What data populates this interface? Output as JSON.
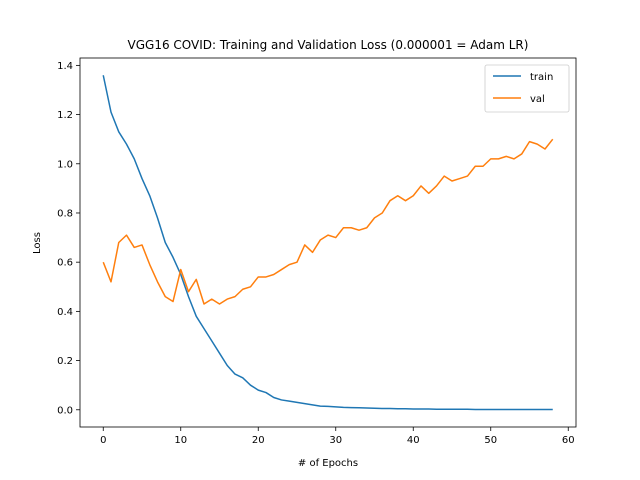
{
  "chart_data": {
    "type": "line",
    "title": "VGG16 COVID: Training and Validation Loss (0.000001 = Adam LR)",
    "xlabel": "# of Epochs",
    "ylabel": "Loss",
    "xlim": [
      -3,
      61
    ],
    "ylim": [
      -0.07,
      1.43
    ],
    "xticks": [
      0,
      10,
      20,
      30,
      40,
      50,
      60
    ],
    "yticks": [
      0.0,
      0.2,
      0.4,
      0.6,
      0.8,
      1.0,
      1.2,
      1.4
    ],
    "legend_position": "top-right",
    "x": [
      0,
      1,
      2,
      3,
      4,
      5,
      6,
      7,
      8,
      9,
      10,
      11,
      12,
      13,
      14,
      15,
      16,
      17,
      18,
      19,
      20,
      21,
      22,
      23,
      24,
      25,
      26,
      27,
      28,
      29,
      30,
      31,
      32,
      33,
      34,
      35,
      36,
      37,
      38,
      39,
      40,
      41,
      42,
      43,
      44,
      45,
      46,
      47,
      48,
      49,
      50,
      51,
      52,
      53,
      54,
      55,
      56,
      57,
      58
    ],
    "series": [
      {
        "name": "train",
        "color": "#1f77b4",
        "values": [
          1.36,
          1.21,
          1.13,
          1.08,
          1.02,
          0.94,
          0.87,
          0.78,
          0.68,
          0.62,
          0.55,
          0.46,
          0.38,
          0.33,
          0.28,
          0.23,
          0.18,
          0.145,
          0.13,
          0.1,
          0.08,
          0.07,
          0.05,
          0.04,
          0.035,
          0.03,
          0.025,
          0.02,
          0.015,
          0.014,
          0.012,
          0.01,
          0.009,
          0.008,
          0.007,
          0.006,
          0.005,
          0.005,
          0.004,
          0.004,
          0.003,
          0.003,
          0.003,
          0.002,
          0.002,
          0.002,
          0.002,
          0.002,
          0.001,
          0.001,
          0.001,
          0.001,
          0.001,
          0.001,
          0.001,
          0.001,
          0.001,
          0.001,
          0.001
        ]
      },
      {
        "name": "val",
        "color": "#ff7f0e",
        "values": [
          0.6,
          0.52,
          0.68,
          0.71,
          0.66,
          0.67,
          0.59,
          0.52,
          0.46,
          0.44,
          0.57,
          0.48,
          0.53,
          0.43,
          0.45,
          0.43,
          0.45,
          0.46,
          0.49,
          0.5,
          0.54,
          0.54,
          0.55,
          0.57,
          0.59,
          0.6,
          0.67,
          0.64,
          0.69,
          0.71,
          0.7,
          0.74,
          0.74,
          0.73,
          0.74,
          0.78,
          0.8,
          0.85,
          0.87,
          0.85,
          0.87,
          0.91,
          0.88,
          0.91,
          0.95,
          0.93,
          0.94,
          0.95,
          0.99,
          0.99,
          1.02,
          1.02,
          1.03,
          1.02,
          1.04,
          1.09,
          1.08,
          1.06,
          1.1
        ]
      }
    ]
  }
}
